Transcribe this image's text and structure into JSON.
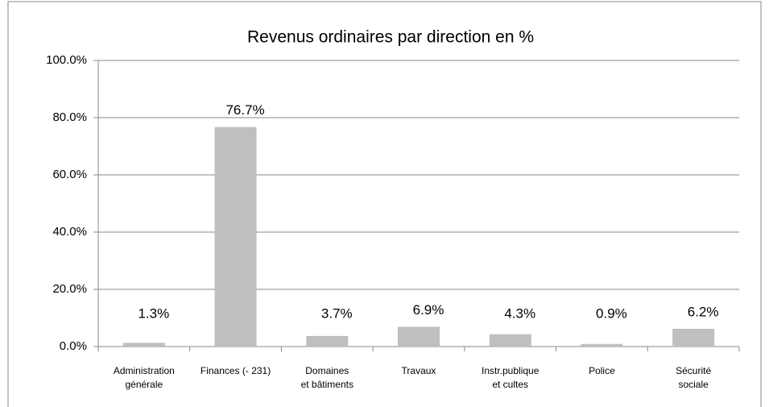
{
  "chart_data": {
    "type": "bar",
    "title": "Revenus ordinaires par direction en %",
    "categories": [
      "Administration\ngénérale",
      "Finances (- 231)",
      "Domaines\net bâtiments",
      "Travaux",
      "Instr.publique\net cultes",
      "Police",
      "Sécurité\nsociale"
    ],
    "values": [
      1.3,
      76.7,
      3.7,
      6.9,
      4.3,
      0.9,
      6.2
    ],
    "value_labels": [
      "1.3%",
      "76.7%",
      "3.7%",
      "6.9%",
      "4.3%",
      "0.9%",
      "6.2%"
    ],
    "color": "#bfbfbf",
    "ylim": [
      0,
      100
    ],
    "yticks": [
      {
        "value": 0,
        "label": "0.0%"
      },
      {
        "value": 20,
        "label": "20.0%"
      },
      {
        "value": 40,
        "label": "40.0%"
      },
      {
        "value": 60,
        "label": "60.0%"
      },
      {
        "value": 80,
        "label": "80.0%"
      },
      {
        "value": 100,
        "label": "100.0%"
      }
    ],
    "grid": true
  }
}
